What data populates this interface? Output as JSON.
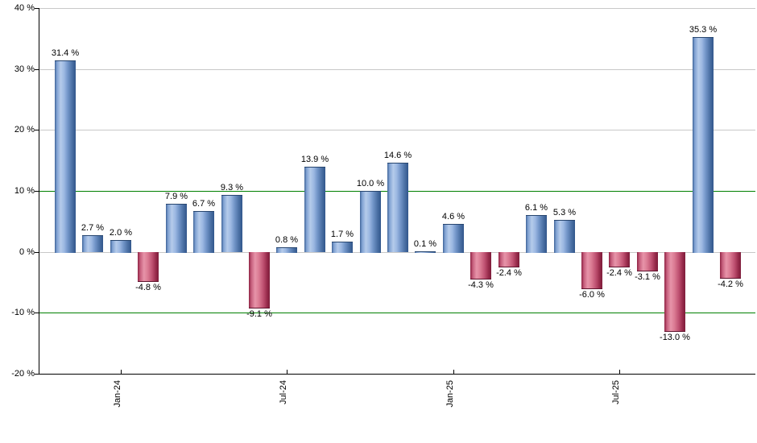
{
  "chart_data": {
    "type": "bar",
    "title": "",
    "unit": "%",
    "values": [
      31.4,
      2.7,
      2.0,
      -4.8,
      7.9,
      6.7,
      9.3,
      -9.1,
      0.8,
      13.9,
      1.7,
      10.0,
      14.6,
      0.1,
      4.6,
      -4.3,
      -2.4,
      6.1,
      5.3,
      -6.0,
      -2.4,
      -3.1,
      -13.0,
      35.3,
      -4.2
    ],
    "value_labels": [
      "31.4 %",
      "2.7 %",
      "2.0 %",
      "-4.8 %",
      "7.9 %",
      "6.7 %",
      "9.3 %",
      "-9.1 %",
      "0.8 %",
      "13.9 %",
      "1.7 %",
      "10.0 %",
      "14.6 %",
      "0.1 %",
      "4.6 %",
      "-4.3 %",
      "-2.4 %",
      "6.1 %",
      "5.3 %",
      "-6.0 %",
      "-2.4 %",
      "-3.1 %",
      "-13.0 %",
      "35.3 %",
      "-4.2 %"
    ],
    "ylim": [
      -20,
      40
    ],
    "y_ticks": [
      {
        "label": "40 %",
        "value": 40
      },
      {
        "label": "30 %",
        "value": 30
      },
      {
        "label": "20 %",
        "value": 20
      },
      {
        "label": "10 %",
        "value": 10
      },
      {
        "label": "0 %",
        "value": 0
      },
      {
        "label": "-10 %",
        "value": -10
      },
      {
        "label": "-20 %",
        "value": -20
      }
    ],
    "x_ticks": [
      {
        "label": "Jan-24",
        "bar_index": 2
      },
      {
        "label": "Jul-24",
        "bar_index": 8
      },
      {
        "label": "Jan-25",
        "bar_index": 14
      },
      {
        "label": "Jul-25",
        "bar_index": 20
      }
    ],
    "gridlines": [
      {
        "value": 40,
        "color": "#c8c8c8"
      },
      {
        "value": 30,
        "color": "#c8c8c8"
      },
      {
        "value": 20,
        "color": "#c8c8c8"
      },
      {
        "value": 10,
        "color": "#008000"
      },
      {
        "value": 0,
        "color": "#c8c8c8"
      },
      {
        "value": -10,
        "color": "#008000"
      }
    ],
    "colors": {
      "positive_bar": "#88a9d8",
      "negative_bar": "#c74a68",
      "threshold_line": "#008000",
      "gridline": "#c8c8c8",
      "axis": "#000000",
      "label_text": "#000000",
      "background": "#ffffff"
    },
    "legend": "none",
    "grid": "on"
  }
}
